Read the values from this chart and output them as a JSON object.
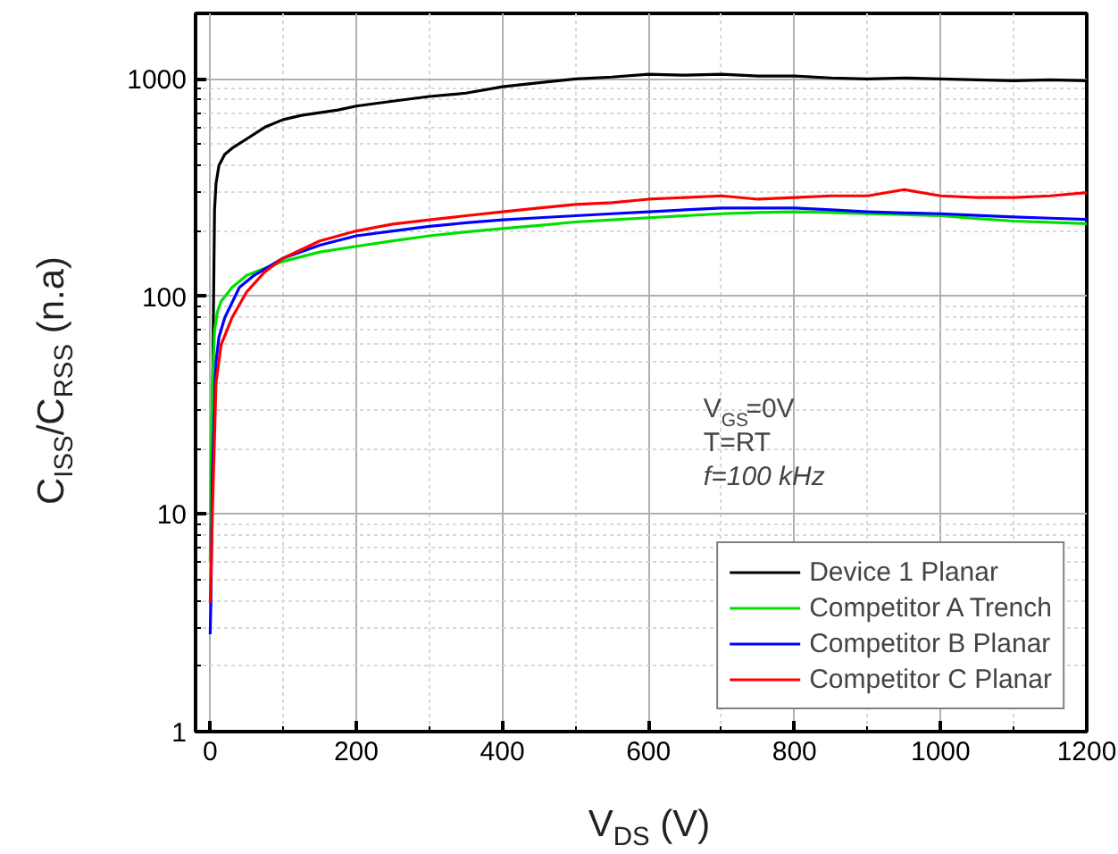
{
  "chart_data": {
    "type": "line",
    "xlabel": "V$_{DS}$ (V)",
    "ylabel": "C$_{ISS}$/C$_{RSS}$ (n.a)",
    "log": "y",
    "grid": true,
    "legend": "bottom right",
    "line_style": "solid",
    "marker": "none",
    "xlim": [
      -20,
      1200
    ],
    "xticks": [
      0,
      200,
      400,
      600,
      800,
      1000,
      1200
    ],
    "ylim": [
      1,
      2000
    ],
    "yticks": [
      1,
      10,
      100,
      1000
    ],
    "annotations": [
      "V$_{GS}$=0V",
      "T=RT",
      "f=100 kHz"
    ],
    "series": [
      {
        "name": "Device 1 Planar",
        "color": "#000000",
        "x": [
          2,
          4,
          6,
          8,
          12,
          20,
          30,
          50,
          75,
          100,
          125,
          150,
          175,
          200,
          250,
          300,
          350,
          400,
          450,
          500,
          550,
          600,
          650,
          700,
          750,
          800,
          850,
          900,
          950,
          1000,
          1050,
          1100,
          1150,
          1200
        ],
        "values": [
          8,
          60,
          250,
          330,
          400,
          450,
          480,
          530,
          600,
          650,
          680,
          700,
          720,
          750,
          790,
          830,
          860,
          920,
          960,
          1000,
          1020,
          1050,
          1040,
          1050,
          1030,
          1030,
          1010,
          1000,
          1010,
          1000,
          990,
          980,
          990,
          980
        ]
      },
      {
        "name": "Competitor A Trench",
        "color": "#00e000",
        "x": [
          0,
          1,
          3,
          6,
          10,
          15,
          30,
          50,
          75,
          100,
          150,
          200,
          250,
          300,
          350,
          400,
          450,
          500,
          550,
          600,
          650,
          700,
          750,
          800,
          850,
          900,
          950,
          1000,
          1050,
          1100,
          1150,
          1200
        ],
        "values": [
          6,
          15,
          40,
          70,
          85,
          95,
          110,
          125,
          135,
          145,
          160,
          170,
          180,
          190,
          198,
          205,
          212,
          220,
          225,
          230,
          235,
          240,
          243,
          245,
          243,
          240,
          238,
          235,
          228,
          222,
          219,
          216
        ]
      },
      {
        "name": "Competitor B Planar",
        "color": "#0000ff",
        "x": [
          0,
          1,
          3,
          8,
          12,
          20,
          40,
          60,
          100,
          150,
          200,
          250,
          300,
          350,
          400,
          450,
          500,
          550,
          600,
          650,
          700,
          750,
          800,
          850,
          900,
          950,
          1000,
          1050,
          1100,
          1150,
          1200
        ],
        "values": [
          2.8,
          4,
          15,
          50,
          65,
          80,
          110,
          125,
          150,
          172,
          190,
          200,
          210,
          218,
          225,
          230,
          235,
          240,
          245,
          250,
          255,
          255,
          255,
          250,
          245,
          242,
          240,
          236,
          232,
          229,
          226
        ]
      },
      {
        "name": "Competitor C Planar",
        "color": "#ff0000",
        "x": [
          0,
          1,
          3,
          8,
          15,
          30,
          50,
          75,
          100,
          150,
          200,
          250,
          300,
          350,
          400,
          450,
          500,
          550,
          600,
          650,
          700,
          750,
          800,
          850,
          900,
          950,
          1000,
          1050,
          1100,
          1150,
          1200
        ],
        "values": [
          3.9,
          5,
          10,
          40,
          60,
          80,
          105,
          130,
          150,
          180,
          200,
          215,
          225,
          235,
          245,
          255,
          265,
          270,
          280,
          285,
          290,
          280,
          285,
          290,
          290,
          310,
          290,
          285,
          285,
          290,
          300
        ]
      }
    ]
  }
}
